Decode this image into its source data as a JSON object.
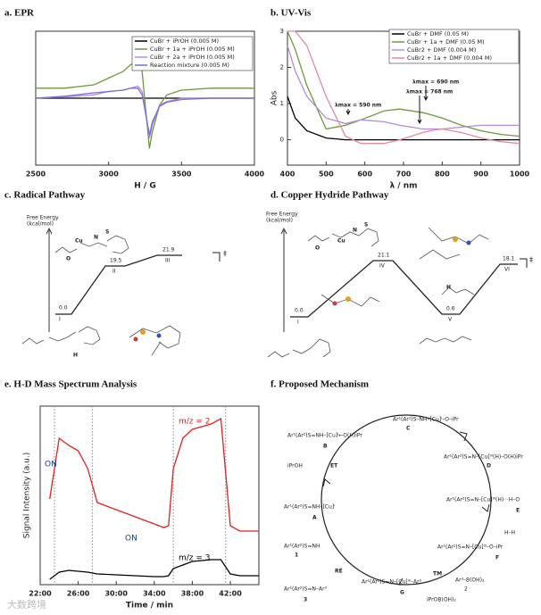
{
  "chart_data": [
    {
      "type": "line",
      "title": "a. EPR",
      "x_label": "H / G",
      "x": [
        2500,
        2700,
        2900,
        3000,
        3100,
        3150,
        3200,
        3230,
        3260,
        3280,
        3300,
        3350,
        3400,
        3500,
        3700,
        4000
      ],
      "xlim": [
        2500,
        4000
      ],
      "xticks": [
        2500,
        3000,
        3500,
        4000
      ],
      "ylim": [
        -1,
        1
      ],
      "legend": "upper right",
      "series": [
        {
          "name": "CuBr + iPrOH (0.005 M)",
          "color": "#000000",
          "values": [
            0,
            0,
            0,
            0,
            0,
            0,
            0,
            0,
            0,
            0,
            0,
            0,
            0,
            0,
            0,
            0
          ]
        },
        {
          "name": "CuBr + 1a + iPrOH (0.005 M)",
          "color": "#6a9a3a",
          "values": [
            0.15,
            0.15,
            0.2,
            0.3,
            0.4,
            0.5,
            0.55,
            0.4,
            -0.3,
            -0.75,
            -0.5,
            -0.1,
            0.05,
            0.12,
            0.15,
            0.15
          ]
        },
        {
          "name": "CuBr + 2a + iPrOH (0.005 M)",
          "color": "#b58ad8",
          "values": [
            0,
            0.02,
            0.05,
            0.1,
            0.12,
            0.15,
            0.18,
            0.1,
            -0.3,
            -0.6,
            -0.4,
            -0.1,
            -0.05,
            0,
            0,
            0
          ]
        },
        {
          "name": "Reaction mixture (0.005 M)",
          "color": "#7b6be0",
          "values": [
            0,
            0.03,
            0.08,
            0.1,
            0.12,
            0.15,
            0.15,
            0.05,
            -0.3,
            -0.55,
            -0.35,
            -0.12,
            -0.06,
            -0.02,
            0,
            0
          ]
        }
      ]
    },
    {
      "type": "line",
      "title": "b. UV-Vis",
      "x_label": "λ / nm",
      "y_label": "Abs",
      "x": [
        400,
        420,
        450,
        500,
        550,
        590,
        650,
        690,
        750,
        768,
        800,
        850,
        900,
        950,
        1000
      ],
      "xlim": [
        400,
        1000
      ],
      "xticks": [
        400,
        500,
        600,
        700,
        800,
        900,
        1000
      ],
      "ylim": [
        -0.7,
        3
      ],
      "yticks": [
        0,
        1,
        2,
        3
      ],
      "legend": "upper right",
      "annotations": [
        "λmax = 590 nm",
        "λmax = 690 nm",
        "λmax = 768 nm"
      ],
      "series": [
        {
          "name": "CuBr + DMF (0.05 M)",
          "color": "#000000",
          "values": [
            1.2,
            0.6,
            0.25,
            0.05,
            0,
            0,
            0,
            0,
            0,
            0,
            0,
            0,
            0,
            0,
            0
          ]
        },
        {
          "name": "CuBr + 1a + DMF (0.05 M)",
          "color": "#6a9a3a",
          "values": [
            3,
            2.5,
            1.5,
            0.3,
            0.4,
            0.55,
            0.8,
            0.85,
            0.75,
            0.7,
            0.6,
            0.4,
            0.25,
            0.15,
            0.1
          ]
        },
        {
          "name": "CuBr2 + DMF (0.004 M)",
          "color": "#b58ad8",
          "values": [
            2.6,
            1.9,
            1.2,
            0.6,
            0.45,
            0.55,
            0.5,
            0.4,
            0.3,
            0.3,
            0.3,
            0.35,
            0.4,
            0.4,
            0.4
          ]
        },
        {
          "name": "CuBr2 + 1a + DMF (0.004 M)",
          "color": "#e8889a",
          "values": [
            3,
            3,
            2.6,
            1.2,
            0.1,
            -0.1,
            -0.1,
            0,
            0.2,
            0.25,
            0.3,
            0.2,
            0.05,
            -0.05,
            -0.1
          ]
        }
      ]
    },
    {
      "type": "line",
      "title": "e. H-D Mass Spectrum Analysis",
      "x_label": "Time / min",
      "y_label": "Signal Intensity (a.u.)",
      "x": [
        23,
        24,
        25,
        26,
        27,
        28,
        30,
        32,
        34,
        35,
        35.5,
        36,
        37,
        38,
        40,
        41,
        42,
        43,
        45
      ],
      "xlim": [
        22,
        45
      ],
      "ylim": [
        0,
        10
      ],
      "xticks": [
        {
          "value": 22,
          "label": "22:00"
        },
        {
          "value": 26,
          "label": "26:00"
        },
        {
          "value": 30,
          "label": "30:00"
        },
        {
          "value": 34,
          "label": "34:00"
        },
        {
          "value": 38,
          "label": "38:00"
        },
        {
          "value": 42,
          "label": "42:00"
        }
      ],
      "event_lines": [
        23.5,
        27.5,
        36,
        41.5
      ],
      "annotations": [
        "ON",
        "ON",
        "m/z = 2",
        "m/z = 3"
      ],
      "series": [
        {
          "name": "m/z = 2",
          "color": "#e02020",
          "values": [
            4.8,
            8.2,
            7.8,
            7.5,
            6.5,
            4.6,
            4.2,
            3.8,
            3.4,
            3.2,
            3.3,
            6.5,
            8.2,
            8.7,
            9.0,
            9.3,
            3.3,
            3.0,
            3.0
          ]
        },
        {
          "name": "m/z = 3",
          "color": "#000000",
          "values": [
            0.3,
            0.7,
            0.8,
            0.75,
            0.7,
            0.6,
            0.55,
            0.5,
            0.45,
            0.45,
            0.5,
            0.9,
            1.1,
            1.3,
            1.4,
            1.4,
            0.6,
            0.5,
            0.5
          ]
        }
      ]
    }
  ],
  "radical_pathway": {
    "title": "c. Radical Pathway",
    "y_label": [
      "Free Energy",
      "(kcal/mol)"
    ],
    "states": [
      {
        "label": "I",
        "energy": "0.0"
      },
      {
        "label": "II",
        "energy": "19.5"
      },
      {
        "label": "III",
        "energy": "21.9"
      }
    ],
    "ts_mark": "‡",
    "atoms": [
      "O",
      "Cu",
      "N",
      "S",
      "H"
    ]
  },
  "hydride_pathway": {
    "title": "d. Copper Hydride Pathway",
    "y_label": [
      "Free Energy",
      "(kcal/mol)"
    ],
    "states": [
      {
        "label": "I",
        "energy": "0.0"
      },
      {
        "label": "IV",
        "energy": "21.1"
      },
      {
        "label": "V",
        "energy": "0.6"
      },
      {
        "label": "VI",
        "energy": "18.1"
      }
    ],
    "ts_mark": "‡",
    "atoms": [
      "O",
      "Cu",
      "N",
      "S",
      "H"
    ]
  },
  "mechanism": {
    "title": "f. Proposed Mechanism",
    "nodes": [
      {
        "label": "A",
        "species": "Ar¹(Ar²)S=NH–[Cu]ᴵ"
      },
      {
        "label": "B",
        "species": "Ar¹(Ar²)S=NH–[Cu]ᴵ←O(H)iPr"
      },
      {
        "label": "C",
        "species": "Ar¹(Ar²)S–NH–[Cu]ᴵ–O–iPr"
      },
      {
        "label": "D",
        "species": "Ar¹(Ar²)S=N–[Cu]ᴵᴵᴵ(H)–O(H)iPr"
      },
      {
        "label": "E",
        "species": "Ar¹(Ar²)S=N–[Cu]ᴵᴵᴵ(H)···H–O"
      },
      {
        "label": "F",
        "species": "Ar¹(Ar²)S=N–[Cu]ᴵᴵᴵ–O–iPr"
      },
      {
        "label": "G",
        "species": "Ar¹(Ar²)S=N–[Cu]ᴵᴵᴵ–Ar³"
      }
    ],
    "steps": [
      "ET",
      "TM",
      "RE"
    ],
    "reagents": [
      "iPrOH",
      "H–H",
      "Ar³–B(OH)₂",
      "2",
      "iPrOB(OH)₂"
    ],
    "substrate": {
      "label": "1",
      "species": "Ar¹(Ar²)S=NH"
    },
    "product": {
      "label": "3",
      "species": "Ar¹(Ar²)S=N–Ar³"
    }
  },
  "watermark": "大数跨境"
}
